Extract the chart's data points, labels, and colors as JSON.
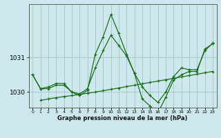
{
  "xlabel": "Graphe pression niveau de la mer (hPa)",
  "background_color": "#cde8ec",
  "grid_color": "#aacccc",
  "line_color": "#1a6e1a",
  "hours": [
    0,
    1,
    2,
    3,
    4,
    5,
    6,
    7,
    8,
    9,
    10,
    11,
    12,
    13,
    14,
    15,
    16,
    17,
    18,
    19,
    20,
    21,
    22,
    23
  ],
  "volatile": [
    1030.5,
    1030.1,
    1030.15,
    1030.25,
    1030.25,
    1030.0,
    1029.9,
    1030.05,
    1031.1,
    1031.6,
    1032.25,
    1031.7,
    1031.1,
    1030.55,
    1029.8,
    1029.6,
    1029.4,
    1029.85,
    1030.35,
    1030.5,
    1030.6,
    1030.6,
    1031.25,
    1031.4
  ],
  "medium": [
    1030.5,
    1030.1,
    1030.1,
    1030.2,
    1030.2,
    1030.0,
    1029.95,
    1030.1,
    1030.7,
    1031.2,
    1031.65,
    1031.35,
    1031.05,
    1030.55,
    1030.15,
    1029.9,
    1029.7,
    1030.0,
    1030.45,
    1030.7,
    1030.65,
    1030.65,
    1031.2,
    1031.42
  ],
  "linear_x": [
    1,
    2,
    3,
    4,
    5,
    6,
    7,
    8,
    9,
    10,
    11,
    12,
    13,
    14,
    15,
    16,
    17,
    18,
    19,
    20,
    21,
    22,
    23
  ],
  "linear": [
    1029.76,
    1029.8,
    1029.84,
    1029.87,
    1029.9,
    1029.93,
    1029.97,
    1030.0,
    1030.04,
    1030.08,
    1030.12,
    1030.16,
    1030.2,
    1030.24,
    1030.28,
    1030.32,
    1030.36,
    1030.4,
    1030.44,
    1030.48,
    1030.52,
    1030.56,
    1030.6
  ],
  "ylim_min": 1029.55,
  "ylim_max": 1032.55,
  "yticks": [
    1030,
    1031
  ],
  "xticks": [
    0,
    1,
    2,
    3,
    4,
    5,
    6,
    7,
    8,
    9,
    10,
    11,
    12,
    13,
    14,
    15,
    16,
    17,
    18,
    19,
    20,
    21,
    22,
    23
  ]
}
